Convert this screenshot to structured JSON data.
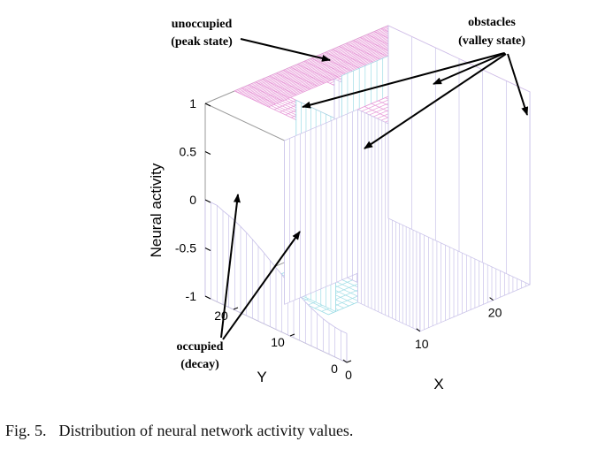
{
  "chart_data": {
    "type": "surface3d",
    "title": "",
    "zlabel": "Neural activity",
    "xlabel": "X",
    "ylabel": "Y",
    "zlim": [
      -1,
      1
    ],
    "xlim": [
      0,
      25
    ],
    "ylim": [
      0,
      25
    ],
    "z_ticks": [
      "1",
      "0.5",
      "0",
      "-0.5",
      "-1"
    ],
    "x_ticks": [
      "0",
      "10",
      "20"
    ],
    "y_ticks": [
      "0",
      "10",
      "20"
    ],
    "states": {
      "unoccupied_peak": 1,
      "obstacle_valley": -1,
      "occupied_decay_range": [
        -0.7,
        0
      ]
    },
    "annotations": [
      {
        "name": "unoccupied",
        "lines": [
          "unoccupied",
          "(peak state)"
        ]
      },
      {
        "name": "obstacles",
        "lines": [
          "obstacles",
          "(valley state)"
        ]
      },
      {
        "name": "occupied",
        "lines": [
          "occupied",
          "(decay)"
        ]
      }
    ],
    "colors": {
      "peak_mesh": "#e79ad8",
      "wall_mesh": "#c9c2e9",
      "valley_mesh": "#9fdde6",
      "axis": "#000000"
    }
  },
  "caption": {
    "label": "Fig. 5.",
    "text": "Distribution of neural network activity values."
  }
}
